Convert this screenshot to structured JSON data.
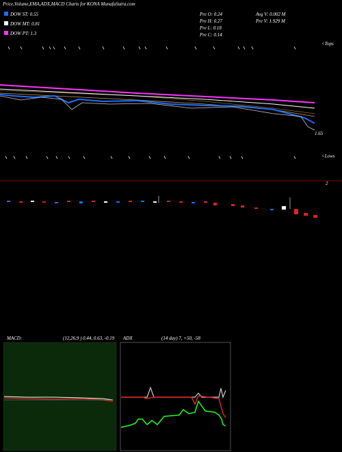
{
  "header": {
    "title": "Price,Volume,EMA,ADX,MACD Charts for KONA MunafaSutra.com"
  },
  "legend": [
    {
      "label": "DOW ST: 0.55",
      "color": "#1e6fff"
    },
    {
      "label": "DOW MT: 0.81",
      "color": "#ffffff"
    },
    {
      "label": "DOW PT: 1.3",
      "color": "#ff33ff"
    }
  ],
  "info": {
    "open": "Pre O: 0.24",
    "high": "Pre H: 0.27",
    "low": "Pre L: 0.18",
    "close": "Pre C: 0.14",
    "avg_volume": "Avg V: 0.002 M",
    "volume": "Pre V: 1.929 M"
  },
  "price_panel": {
    "last_label": "1.65",
    "tops_label": "<Tops",
    "lows_label": "<Lows"
  },
  "volume_panel": {
    "label": "2"
  },
  "macd": {
    "title": "MACD:",
    "params": "(12,26,9 ) 0.44, 0.63, -0.19"
  },
  "adx": {
    "title": "ADX",
    "params": "(14 day) 7, +50, -58"
  }
}
